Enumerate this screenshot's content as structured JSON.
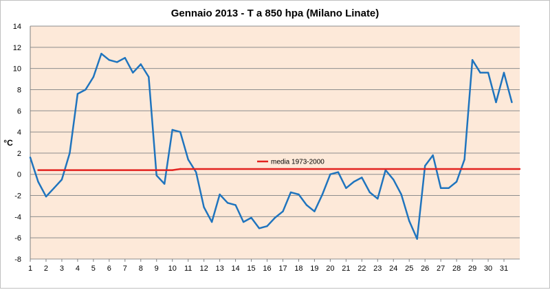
{
  "chart_data": {
    "type": "line",
    "title": "Gennaio 2013 - T a 850 hpa (Milano Linate)",
    "xlabel": "",
    "ylabel": "°C",
    "ylim": [
      -8,
      14
    ],
    "yticks": [
      14,
      12,
      10,
      8,
      6,
      4,
      2,
      0,
      -2,
      -4,
      -6,
      -8
    ],
    "xlim": [
      1,
      32
    ],
    "xticks": [
      "1",
      "2",
      "3",
      "4",
      "5",
      "6",
      "7",
      "8",
      "9",
      "10",
      "11",
      "12",
      "13",
      "14",
      "15",
      "16",
      "17",
      "18",
      "19",
      "20",
      "21",
      "22",
      "23",
      "24",
      "25",
      "26",
      "27",
      "28",
      "29",
      "30",
      "31"
    ],
    "grid": "horizontal",
    "plot_background": "#fde9d9",
    "series": [
      {
        "name": "",
        "color": "#1f74be",
        "x": [
          1.0,
          1.5,
          2.0,
          2.5,
          3.0,
          3.5,
          4.0,
          4.5,
          5.0,
          5.5,
          6.0,
          6.5,
          7.0,
          7.5,
          8.0,
          8.5,
          9.0,
          9.5,
          10.0,
          10.5,
          11.0,
          11.5,
          12.0,
          12.5,
          13.0,
          13.5,
          14.0,
          14.5,
          15.0,
          15.5,
          16.0,
          16.5,
          17.0,
          17.5,
          18.0,
          18.5,
          19.0,
          19.5,
          20.0,
          20.5,
          21.0,
          21.5,
          22.0,
          22.5,
          23.0,
          23.5,
          24.0,
          24.5,
          25.0,
          25.5,
          26.0,
          26.5,
          27.0,
          27.5,
          28.0,
          28.5,
          29.0,
          29.5,
          30.0,
          30.5,
          31.0,
          31.5
        ],
        "values": [
          1.6,
          -0.7,
          -2.1,
          -1.3,
          -0.5,
          2.0,
          7.6,
          8.0,
          9.2,
          11.4,
          10.8,
          10.6,
          11.0,
          9.6,
          10.4,
          9.2,
          -0.1,
          -0.9,
          4.2,
          4.0,
          1.4,
          0.2,
          -3.1,
          -4.5,
          -1.9,
          -2.7,
          -2.9,
          -4.5,
          -4.1,
          -5.1,
          -4.9,
          -4.1,
          -3.5,
          -1.7,
          -1.9,
          -2.9,
          -3.5,
          -1.9,
          0.0,
          0.2,
          -1.3,
          -0.7,
          -0.3,
          -1.7,
          -2.3,
          0.4,
          -0.5,
          -1.9,
          -4.4,
          -6.1,
          0.8,
          1.8,
          -1.3,
          -1.3,
          -0.7,
          1.4,
          10.8,
          9.6,
          9.6,
          6.8,
          9.6,
          6.8
        ]
      },
      {
        "name": "media 1973-2000",
        "color": "#e3221f",
        "x": [
          1.5,
          10.0,
          10.5,
          32.0
        ],
        "values": [
          0.4,
          0.4,
          0.5,
          0.5
        ]
      }
    ],
    "legend": {
      "placement": "inside-center",
      "entries": [
        "media 1973-2000"
      ]
    }
  }
}
